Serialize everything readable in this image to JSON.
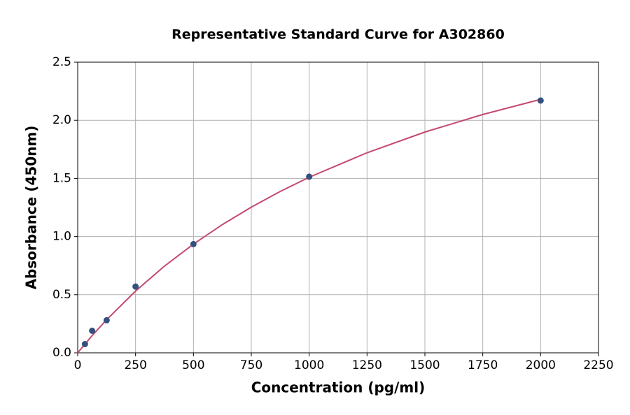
{
  "chart_data": {
    "type": "scatter",
    "title": "Representative Standard Curve for A302860",
    "x_label": "Concentration (pg/ml)",
    "y_label": "Absorbance (450nm)",
    "series": [
      {
        "type": "scatter",
        "color": "#34507f",
        "x": [
          31.25,
          62.5,
          125,
          250,
          500,
          1000,
          2000
        ],
        "values": [
          0.075,
          0.19,
          0.28,
          0.57,
          0.935,
          1.515,
          2.17
        ]
      },
      {
        "type": "line",
        "color": "#c44a6e",
        "x": [
          0,
          62.5,
          125,
          250,
          375,
          500,
          625,
          750,
          875,
          1000,
          1250,
          1500,
          1750,
          2000
        ],
        "values": [
          0,
          0.148,
          0.285,
          0.531,
          0.746,
          0.935,
          1.103,
          1.253,
          1.388,
          1.51,
          1.721,
          1.899,
          2.05,
          2.18
        ]
      }
    ],
    "xlim": [
      0,
      2250
    ],
    "xticks": [
      0,
      250,
      500,
      750,
      1000,
      1250,
      1500,
      1750,
      2000,
      2250
    ],
    "ylim": [
      0,
      2.5
    ],
    "yticks": [
      {
        "value": 0,
        "label": "0.0"
      },
      0.5,
      {
        "value": 1,
        "label": "1.0"
      },
      1.5,
      {
        "value": 2,
        "label": "2.0"
      },
      2.5
    ],
    "grid": true
  }
}
